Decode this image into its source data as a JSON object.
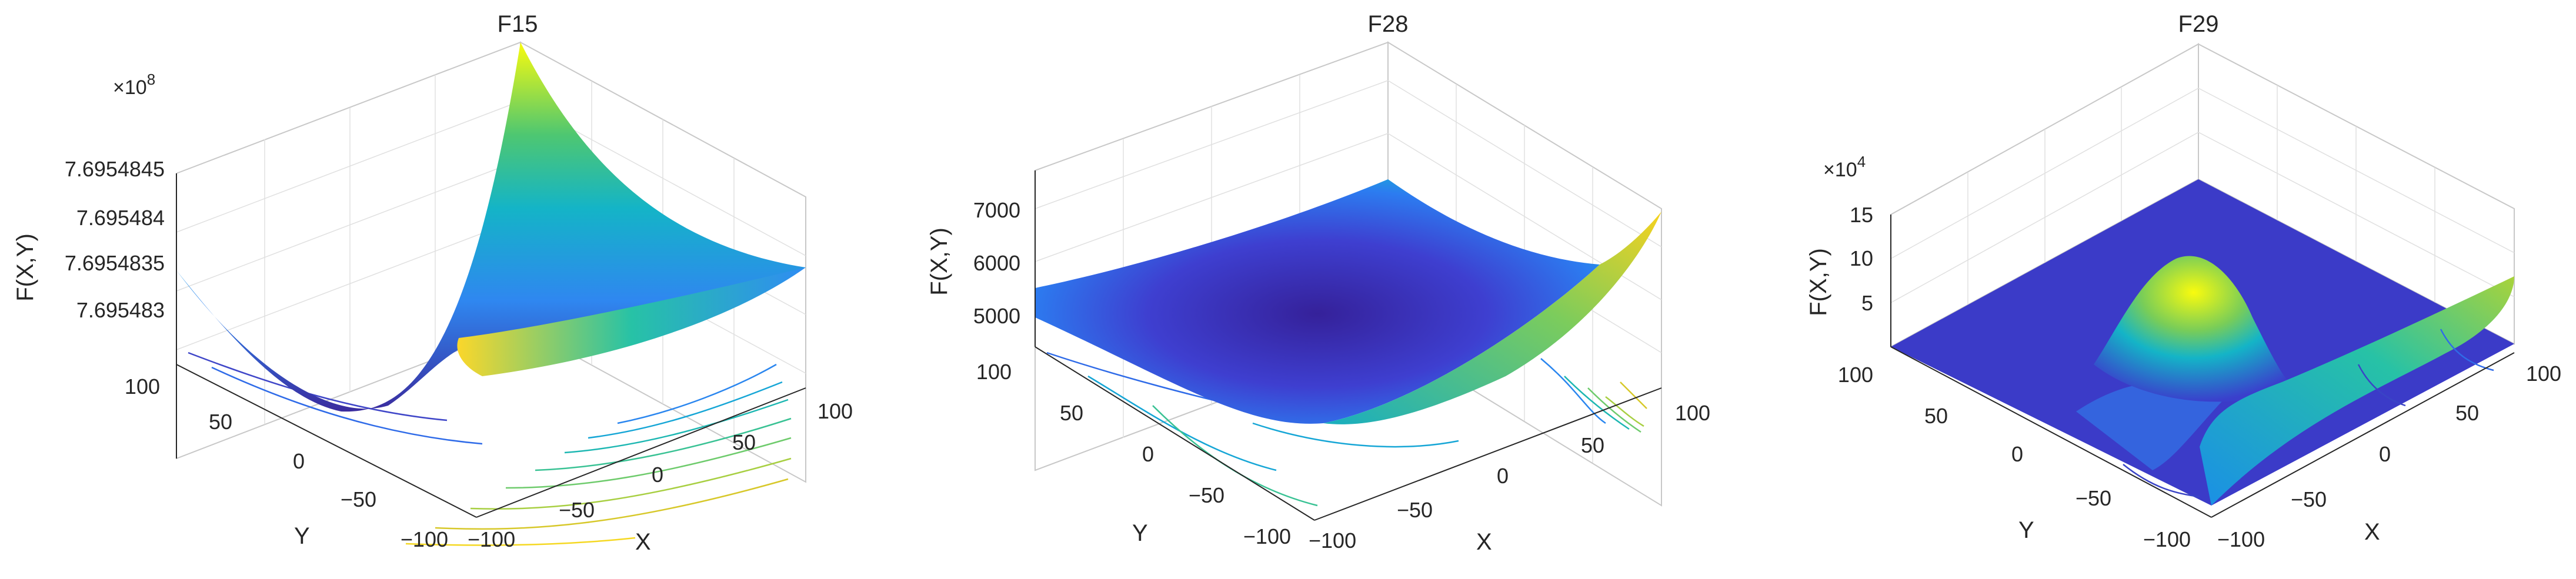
{
  "figure": {
    "background": "#ffffff",
    "colormap": "parula"
  },
  "chart_data": [
    {
      "type": "surface",
      "title": "F15",
      "xlabel": "X",
      "ylabel": "Y",
      "zlabel": "F(X,Y)",
      "z_exponent": "×10^8",
      "z_exponent_base": "×10",
      "z_exponent_power": "8",
      "xlim": [
        -100,
        100
      ],
      "ylim": [
        -100,
        100
      ],
      "x_ticks": [
        "-100",
        "-50",
        "0",
        "50",
        "100"
      ],
      "y_ticks": [
        "-100",
        "-50",
        "0",
        "50",
        "100"
      ],
      "z_ticks": [
        "7.695483",
        "7.6954835",
        "7.695484",
        "7.6954845"
      ],
      "surface_shape": "saddle-valley",
      "contours": "bottom plane",
      "grid": true
    },
    {
      "type": "surface",
      "title": "F28",
      "xlabel": "X",
      "ylabel": "Y",
      "zlabel": "F(X,Y)",
      "xlim": [
        -100,
        100
      ],
      "ylim": [
        -100,
        100
      ],
      "x_ticks": [
        "-100",
        "-50",
        "0",
        "50",
        "100"
      ],
      "y_ticks": [
        "-100",
        "-50",
        "0",
        "50",
        "100"
      ],
      "z_ticks": [
        "5000",
        "6000",
        "7000"
      ],
      "surface_shape": "bowl",
      "contours": "bottom plane",
      "grid": true
    },
    {
      "type": "surface",
      "title": "F29",
      "xlabel": "X",
      "ylabel": "Y",
      "zlabel": "F(X,Y)",
      "z_exponent": "×10^4",
      "z_exponent_base": "×10",
      "z_exponent_power": "4",
      "xlim": [
        -100,
        100
      ],
      "ylim": [
        -100,
        100
      ],
      "x_ticks": [
        "-100",
        "-50",
        "0",
        "50",
        "100"
      ],
      "y_ticks": [
        "-100",
        "-50",
        "0",
        "50",
        "100"
      ],
      "z_ticks": [
        "5",
        "10",
        "15"
      ],
      "surface_shape": "central peak",
      "contours": "bottom plane",
      "grid": true
    }
  ]
}
